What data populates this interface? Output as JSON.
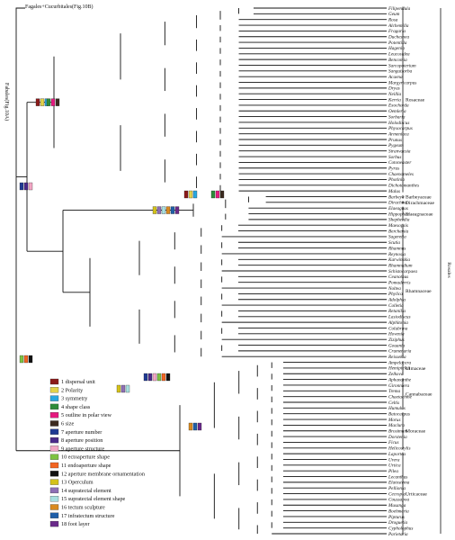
{
  "root_labels": {
    "fagales": "Fagales+Cucurbitales(Fig.10B)",
    "fabales": "Fabales(Fig.10A)"
  },
  "taxa": [
    "Filipendula",
    "Geum",
    "Rosa",
    "Alchemilla",
    "Fragaria",
    "Duchesnea",
    "Potentilla",
    "Hagenia",
    "Leucosidea",
    "Bencomia",
    "Sarcopoterium",
    "Sanguisorba",
    "Acaena",
    "Margyricarpus",
    "Dryas",
    "Neillia",
    "Kerria",
    "Exochorda",
    "Oemleria",
    "Sorbaria",
    "Holodiscus",
    "Physocarpus",
    "Armeniaca",
    "Prunus",
    "Pygeum",
    "Stranvaesia",
    "Sorbus",
    "Cotoneaster",
    "Pyrus",
    "Chaenomeles",
    "Photinia",
    "Dichotomanthes",
    "Malus",
    "Barbeya",
    "Dirachma",
    "Elaeagnus",
    "Hippophae",
    "Shepherdia",
    "Maesopsis",
    "Berchemia",
    "Sageretia",
    "Scutia",
    "Rhamnus",
    "Reynosia",
    "Karwinskia",
    "Rhamnidium",
    "Schistocarpaea",
    "Ceanothus",
    "Pomaderris",
    "Noltea",
    "Phylica",
    "Adolphia",
    "Colletia",
    "Retanilla",
    "Lasiodiscus",
    "Alphitonia",
    "Colubrina",
    "Hovenia",
    "Ziziphus",
    "Gouania",
    "Crumenaria",
    "Reissekia",
    "Ampelocera",
    "Hemiptelea",
    "Zelkova",
    "Aphananthe",
    "Gironniera",
    "Trema",
    "Chaetachme",
    "Celtis",
    "Humulus",
    "Batocarpus",
    "Morus",
    "Maclura",
    "Brosimum",
    "Dorstenia",
    "Ficus",
    "Helicostylis",
    "Laportea",
    "Urera",
    "Urtica",
    "Pilea",
    "Lecanthus",
    "Elatostema",
    "Pellionia",
    "Cecropia",
    "Coussapoa",
    "Musanga",
    "Boehmeria",
    "Pipturus",
    "Droguetia",
    "Cypholophus",
    "Parietaria"
  ],
  "families": [
    {
      "name": "Rosaceae",
      "start": 0,
      "end": 32
    },
    {
      "name": "Barbeyaceae",
      "start": 33,
      "end": 33
    },
    {
      "name": "Dirachmaceae",
      "start": 34,
      "end": 34
    },
    {
      "name": "Elaeagnaceae",
      "start": 35,
      "end": 37
    },
    {
      "name": "Rhamnaceae",
      "start": 38,
      "end": 61
    },
    {
      "name": "Ulmaceae",
      "start": 62,
      "end": 64
    },
    {
      "name": "Cannabaceae",
      "start": 65,
      "end": 70
    },
    {
      "name": "Moraceae",
      "start": 71,
      "end": 77
    },
    {
      "name": "Urticaceae",
      "start": 78,
      "end": 92
    }
  ],
  "order_label": "Rosales",
  "legend": [
    {
      "label": "1 dispersal unit",
      "color": "#8b1a1a"
    },
    {
      "label": "2 Polarity",
      "color": "#e3d24a"
    },
    {
      "label": "3 symmetry",
      "color": "#29a8e0"
    },
    {
      "label": "4 shape class",
      "color": "#2e8b3a"
    },
    {
      "label": "5 outline in polar view",
      "color": "#e6197f"
    },
    {
      "label": "6 size",
      "color": "#3b2a1f"
    },
    {
      "label": "7 aperture number",
      "color": "#1f3a93"
    },
    {
      "label": "8 aperture position",
      "color": "#4b2a8a"
    },
    {
      "label": "9 aperture structure",
      "color": "#f2a6c4"
    },
    {
      "label": "10 ectoaperture shape",
      "color": "#7dc242"
    },
    {
      "label": "11 endoaperture shape",
      "color": "#f26522"
    },
    {
      "label": "12 aperture membrane ornamentation",
      "color": "#111111"
    },
    {
      "label": "13 Operculum",
      "color": "#d4c21a"
    },
    {
      "label": "14 supratectal element",
      "color": "#8e6fb5"
    },
    {
      "label": "15 supratectal element shape",
      "color": "#a8e0e0"
    },
    {
      "label": "16 tectum sculpture",
      "color": "#d98a1f"
    },
    {
      "label": "17 infratectum structure",
      "color": "#1f5fa8"
    },
    {
      "label": "18 foot layer",
      "color": "#6a2a8a"
    }
  ]
}
